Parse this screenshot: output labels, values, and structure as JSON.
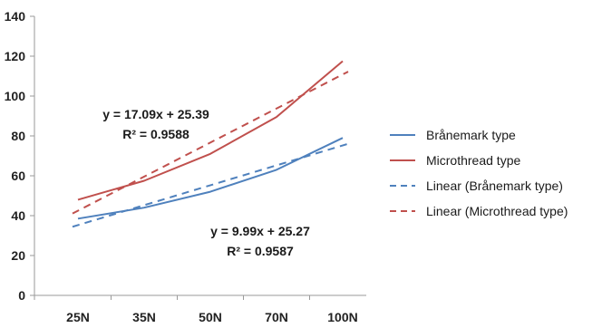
{
  "chart_data": {
    "type": "line",
    "title": "",
    "xlabel": "",
    "ylabel": "",
    "categories": [
      "25N",
      "35N",
      "50N",
      "70N",
      "100N"
    ],
    "ylim": [
      0,
      140
    ],
    "yticks": [
      0,
      20,
      40,
      60,
      80,
      100,
      120,
      140
    ],
    "grid": false,
    "legend_position": "right",
    "series": [
      {
        "name": "Brånemark type",
        "values": [
          38.5,
          44,
          52,
          63,
          79
        ],
        "color": "#4f81bd",
        "style": "solid"
      },
      {
        "name": "Microthread type",
        "values": [
          48,
          57.5,
          71,
          89.5,
          117.5
        ],
        "color": "#c0504d",
        "style": "solid"
      },
      {
        "name": "Linear (Brånemark type)",
        "trend_of": "Brånemark type",
        "slope": 9.99,
        "intercept": 25.27,
        "color": "#4f81bd",
        "style": "dashed"
      },
      {
        "name": "Linear (Microthread type)",
        "trend_of": "Microthread type",
        "slope": 17.09,
        "intercept": 25.39,
        "color": "#c0504d",
        "style": "dashed"
      }
    ],
    "annotations": [
      {
        "id": "microthread-equation",
        "equation": "y = 17.09x + 25.39",
        "r_squared": "R² = 0.9588"
      },
      {
        "id": "branemark-equation",
        "equation": "y = 9.99x + 25.27",
        "r_squared": "R² = 0.9587"
      }
    ]
  }
}
